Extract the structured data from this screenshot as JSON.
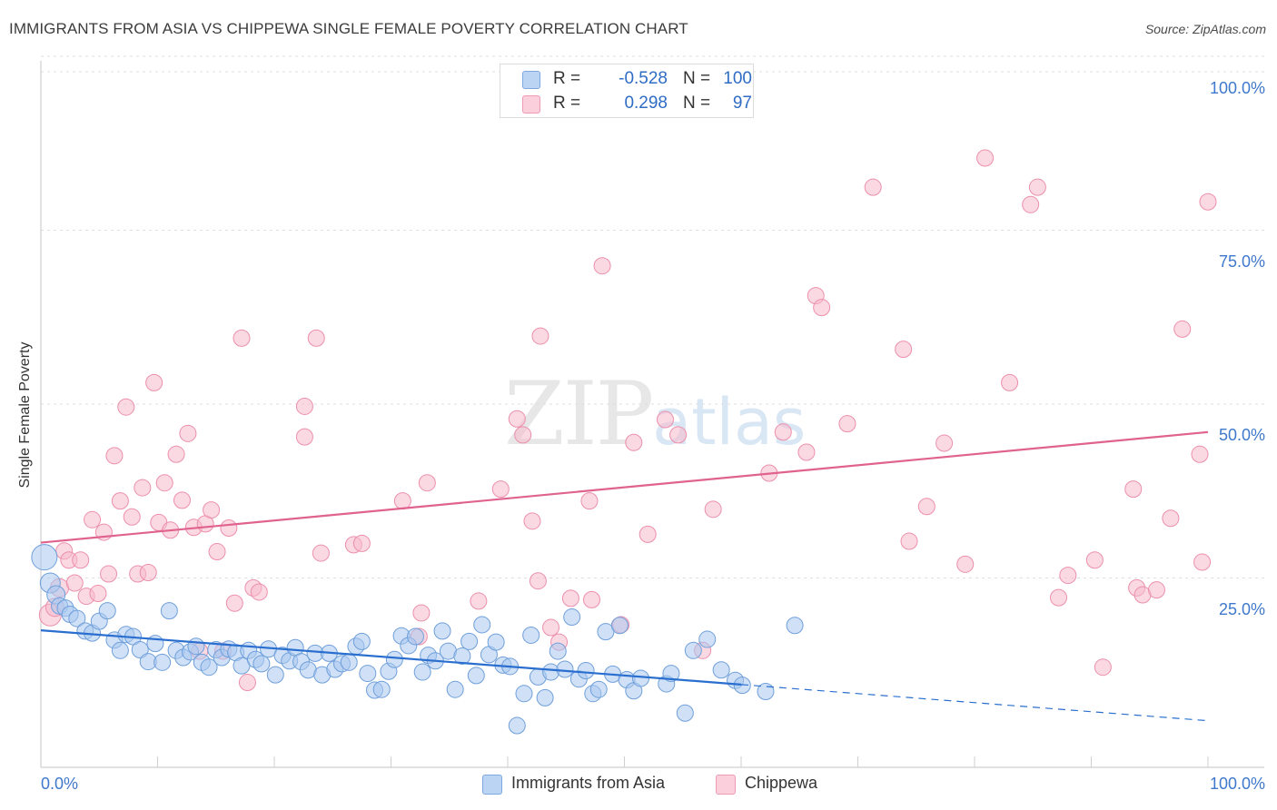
{
  "header": {
    "title": "IMMIGRANTS FROM ASIA VS CHIPPEWA SINGLE FEMALE POVERTY CORRELATION CHART",
    "source": "Source: ZipAtlas.com"
  },
  "watermark": {
    "zip": "ZIP",
    "atlas": "atlas"
  },
  "legend_top": [
    {
      "r_label": "R =",
      "r_value": "-0.528",
      "n_label": "N =",
      "n_value": "100",
      "color": "#a9c8f0"
    },
    {
      "r_label": "R =",
      "r_value": "0.298",
      "n_label": "N =",
      "n_value": "97",
      "color": "#f7b9cc"
    }
  ],
  "legend_bottom": [
    {
      "label": "Immigrants from Asia",
      "color": "#a9c8f0"
    },
    {
      "label": "Chippewa",
      "color": "#f7b9cc"
    }
  ],
  "chart_data": {
    "type": "scatter",
    "title": "IMMIGRANTS FROM ASIA VS CHIPPEWA SINGLE FEMALE POVERTY CORRELATION CHART",
    "xlabel": "",
    "ylabel": "Single Female Poverty",
    "xlim": [
      0,
      100
    ],
    "ylim": [
      0,
      100
    ],
    "x_tick_labels": [
      "0.0%",
      "100.0%"
    ],
    "y_tick_labels": [
      "25.0%",
      "50.0%",
      "75.0%",
      "100.0%"
    ],
    "y_ticks": [
      25,
      50,
      75,
      100
    ],
    "grid": true,
    "colors": {
      "asia_fill": "#a9c8f0",
      "asia_stroke": "#6f9fda",
      "asia_line": "#2a6fcf",
      "chip_fill": "#f7b9cc",
      "chip_stroke": "#ec8fac",
      "chip_line": "#e0628e",
      "tick_label": "#3f78cc",
      "grid": "#dedede",
      "axis": "#cfcfcf"
    },
    "series": [
      {
        "name": "Immigrants from Asia",
        "r": -0.528,
        "n": 100,
        "trend": {
          "x0": 0,
          "y0": 19.7,
          "x1": 60,
          "y1": 11.9,
          "dash_to_x": 100,
          "dash_to_y": 6.7
        },
        "points": [
          [
            0.3,
            30.2,
            14
          ],
          [
            0.8,
            26.5,
            11
          ],
          [
            1.3,
            24.8,
            10
          ],
          [
            1.6,
            23.2,
            9
          ],
          [
            2.1,
            22.9,
            9
          ],
          [
            2.5,
            22.0,
            9
          ],
          [
            3.1,
            21.4,
            9
          ],
          [
            3.8,
            19.6,
            9
          ],
          [
            4.4,
            19.3,
            9
          ],
          [
            5.0,
            21.0,
            9
          ],
          [
            5.7,
            22.5,
            9
          ],
          [
            6.3,
            18.3,
            9
          ],
          [
            6.8,
            16.8,
            9
          ],
          [
            7.3,
            19.1,
            9
          ],
          [
            7.9,
            18.8,
            9
          ],
          [
            8.5,
            16.9,
            9
          ],
          [
            9.2,
            15.2,
            9
          ],
          [
            9.8,
            17.8,
            9
          ],
          [
            10.4,
            15.1,
            9
          ],
          [
            11.0,
            22.5,
            9
          ],
          [
            11.6,
            16.8,
            9
          ],
          [
            12.2,
            15.8,
            9
          ],
          [
            12.8,
            16.6,
            9
          ],
          [
            13.3,
            17.4,
            9
          ],
          [
            13.8,
            15.1,
            9
          ],
          [
            14.4,
            14.4,
            9
          ],
          [
            15.0,
            16.9,
            9
          ],
          [
            15.5,
            15.8,
            9
          ],
          [
            16.1,
            17.0,
            9
          ],
          [
            16.7,
            16.5,
            9
          ],
          [
            17.2,
            14.6,
            9
          ],
          [
            17.8,
            16.8,
            9
          ],
          [
            18.4,
            15.5,
            9
          ],
          [
            18.9,
            14.9,
            9
          ],
          [
            19.5,
            17.0,
            9
          ],
          [
            20.1,
            13.3,
            9
          ],
          [
            20.7,
            16.1,
            9
          ],
          [
            21.3,
            15.3,
            9
          ],
          [
            21.8,
            17.2,
            9
          ],
          [
            22.3,
            15.2,
            9
          ],
          [
            22.9,
            14.0,
            9
          ],
          [
            23.5,
            16.4,
            9
          ],
          [
            24.1,
            13.3,
            9
          ],
          [
            24.7,
            16.4,
            9
          ],
          [
            25.2,
            14.1,
            9
          ],
          [
            25.8,
            14.9,
            9
          ],
          [
            26.4,
            15.1,
            9
          ],
          [
            27.0,
            17.4,
            9
          ],
          [
            27.5,
            18.1,
            9
          ],
          [
            28.0,
            13.5,
            9
          ],
          [
            28.6,
            11.1,
            9
          ],
          [
            29.2,
            11.2,
            9
          ],
          [
            29.8,
            13.8,
            9
          ],
          [
            30.3,
            15.5,
            9
          ],
          [
            30.9,
            18.9,
            9
          ],
          [
            31.5,
            17.5,
            9
          ],
          [
            32.1,
            18.8,
            9
          ],
          [
            32.7,
            13.7,
            9
          ],
          [
            33.2,
            16.1,
            9
          ],
          [
            33.8,
            15.3,
            9
          ],
          [
            34.4,
            19.6,
            9
          ],
          [
            34.9,
            16.7,
            9
          ],
          [
            35.5,
            11.2,
            9
          ],
          [
            36.1,
            16.0,
            9
          ],
          [
            36.7,
            18.1,
            9
          ],
          [
            37.3,
            13.2,
            9
          ],
          [
            37.8,
            20.5,
            9
          ],
          [
            38.4,
            16.2,
            9
          ],
          [
            39.0,
            18.0,
            9
          ],
          [
            39.6,
            14.7,
            9
          ],
          [
            40.2,
            14.5,
            9
          ],
          [
            40.8,
            6.0,
            9
          ],
          [
            41.4,
            10.6,
            9
          ],
          [
            42.0,
            19.0,
            9
          ],
          [
            42.6,
            13.0,
            9
          ],
          [
            43.2,
            10.0,
            9
          ],
          [
            43.7,
            13.7,
            9
          ],
          [
            44.3,
            16.7,
            9
          ],
          [
            44.9,
            14.1,
            9
          ],
          [
            45.5,
            21.6,
            9
          ],
          [
            46.1,
            12.7,
            9
          ],
          [
            46.7,
            13.9,
            9
          ],
          [
            47.3,
            10.6,
            9
          ],
          [
            47.8,
            11.2,
            9
          ],
          [
            48.4,
            19.5,
            9
          ],
          [
            49.0,
            13.4,
            9
          ],
          [
            49.6,
            20.4,
            9
          ],
          [
            50.2,
            12.6,
            9
          ],
          [
            50.8,
            11.0,
            9
          ],
          [
            51.4,
            12.8,
            9
          ],
          [
            53.6,
            12.0,
            9
          ],
          [
            54.0,
            13.5,
            9
          ],
          [
            55.2,
            7.8,
            9
          ],
          [
            55.9,
            16.8,
            9
          ],
          [
            57.1,
            18.4,
            9
          ],
          [
            58.3,
            14.0,
            9
          ],
          [
            59.5,
            12.5,
            9
          ],
          [
            60.1,
            11.8,
            9
          ],
          [
            62.1,
            10.9,
            9
          ],
          [
            64.6,
            20.4,
            9
          ]
        ]
      },
      {
        "name": "Chippewa",
        "r": 0.298,
        "n": 97,
        "trend": {
          "x0": 0,
          "y0": 32.3,
          "x1": 100,
          "y1": 48.2
        },
        "points": [
          [
            0.8,
            21.9,
            12
          ],
          [
            1.2,
            23.0,
            10
          ],
          [
            1.6,
            25.8,
            10
          ],
          [
            2.0,
            31.1,
            9
          ],
          [
            2.4,
            29.8,
            9
          ],
          [
            2.9,
            26.5,
            9
          ],
          [
            3.4,
            29.8,
            9
          ],
          [
            3.9,
            24.6,
            9
          ],
          [
            4.4,
            35.6,
            9
          ],
          [
            4.9,
            25.0,
            9
          ],
          [
            5.4,
            33.8,
            9
          ],
          [
            5.8,
            27.8,
            9
          ],
          [
            6.3,
            44.8,
            9
          ],
          [
            6.8,
            38.3,
            9
          ],
          [
            7.3,
            51.8,
            9
          ],
          [
            7.8,
            36.0,
            9
          ],
          [
            8.3,
            27.8,
            9
          ],
          [
            8.7,
            40.2,
            9
          ],
          [
            9.2,
            28.0,
            9
          ],
          [
            9.7,
            55.3,
            9
          ],
          [
            10.1,
            35.2,
            9
          ],
          [
            10.6,
            40.9,
            9
          ],
          [
            11.1,
            34.1,
            9
          ],
          [
            11.6,
            45.0,
            9
          ],
          [
            12.1,
            38.4,
            9
          ],
          [
            12.6,
            48.0,
            9
          ],
          [
            13.1,
            34.5,
            9
          ],
          [
            13.6,
            16.7,
            9
          ],
          [
            14.1,
            35.0,
            9
          ],
          [
            14.6,
            37.0,
            9
          ],
          [
            15.1,
            31.0,
            9
          ],
          [
            15.6,
            16.7,
            9
          ],
          [
            16.1,
            34.4,
            9
          ],
          [
            16.6,
            23.6,
            9
          ],
          [
            17.2,
            61.7,
            9
          ],
          [
            17.7,
            12.2,
            9
          ],
          [
            18.2,
            25.8,
            9
          ],
          [
            18.7,
            25.2,
            9
          ],
          [
            22.6,
            51.9,
            9
          ],
          [
            22.6,
            47.5,
            9
          ],
          [
            23.6,
            61.7,
            9
          ],
          [
            24.0,
            30.8,
            9
          ],
          [
            26.8,
            32.0,
            9
          ],
          [
            27.5,
            32.2,
            9
          ],
          [
            31.0,
            38.3,
            9
          ],
          [
            32.4,
            18.8,
            9
          ],
          [
            32.6,
            22.2,
            9
          ],
          [
            33.1,
            40.9,
            9
          ],
          [
            37.5,
            23.9,
            9
          ],
          [
            39.4,
            40.0,
            9
          ],
          [
            40.8,
            50.1,
            9
          ],
          [
            41.3,
            47.8,
            9
          ],
          [
            42.1,
            35.4,
            9
          ],
          [
            42.6,
            26.8,
            9
          ],
          [
            42.8,
            62.0,
            9
          ],
          [
            43.7,
            20.1,
            9
          ],
          [
            44.4,
            18.0,
            9
          ],
          [
            45.4,
            24.3,
            9
          ],
          [
            47.0,
            38.3,
            9
          ],
          [
            47.2,
            24.1,
            9
          ],
          [
            48.1,
            72.1,
            9
          ],
          [
            49.7,
            20.5,
            9
          ],
          [
            50.8,
            46.7,
            9
          ],
          [
            52.0,
            33.5,
            9
          ],
          [
            53.5,
            50.0,
            9
          ],
          [
            54.6,
            47.8,
            9
          ],
          [
            56.7,
            16.8,
            9
          ],
          [
            57.6,
            37.1,
            9
          ],
          [
            62.4,
            42.3,
            9
          ],
          [
            63.6,
            48.2,
            9
          ],
          [
            65.6,
            45.3,
            9
          ],
          [
            66.4,
            67.8,
            9
          ],
          [
            66.9,
            66.1,
            9
          ],
          [
            69.1,
            49.4,
            9
          ],
          [
            71.3,
            83.4,
            9
          ],
          [
            73.9,
            60.1,
            9
          ],
          [
            74.4,
            32.5,
            9
          ],
          [
            75.9,
            37.5,
            9
          ],
          [
            77.4,
            46.6,
            9
          ],
          [
            79.2,
            29.2,
            9
          ],
          [
            80.9,
            87.6,
            9
          ],
          [
            83.0,
            55.3,
            9
          ],
          [
            84.8,
            80.9,
            9
          ],
          [
            85.4,
            83.4,
            9
          ],
          [
            87.2,
            24.4,
            9
          ],
          [
            88.0,
            27.6,
            9
          ],
          [
            90.3,
            29.8,
            9
          ],
          [
            91.0,
            14.4,
            9
          ],
          [
            93.6,
            40.0,
            9
          ],
          [
            93.9,
            25.8,
            9
          ],
          [
            94.4,
            24.8,
            9
          ],
          [
            95.6,
            25.5,
            9
          ],
          [
            96.8,
            35.8,
            9
          ],
          [
            97.8,
            63.0,
            9
          ],
          [
            99.3,
            45.0,
            9
          ],
          [
            99.5,
            29.5,
            9
          ],
          [
            100.0,
            81.3,
            9
          ]
        ]
      }
    ]
  }
}
